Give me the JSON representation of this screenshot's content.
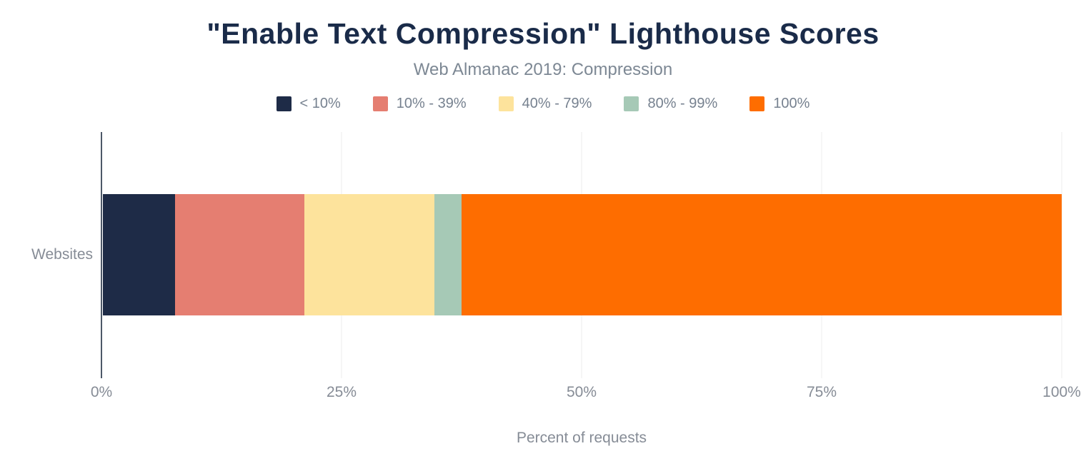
{
  "chart": {
    "title": "\"Enable Text Compression\" Lighthouse Scores",
    "subtitle": "Web Almanac 2019: Compression",
    "y_category": "Websites",
    "x_axis_title": "Percent of requests"
  },
  "chart_data": {
    "type": "bar",
    "orientation": "horizontal",
    "stacked": true,
    "title": "\"Enable Text Compression\" Lighthouse Scores",
    "subtitle": "Web Almanac 2019: Compression",
    "categories": [
      "Websites"
    ],
    "series": [
      {
        "name": "< 10%",
        "values": [
          7.5
        ],
        "color": "#1e2b47"
      },
      {
        "name": "10% - 39%",
        "values": [
          13.5
        ],
        "color": "#e57e71"
      },
      {
        "name": "40% - 79%",
        "values": [
          13.6
        ],
        "color": "#fde39c"
      },
      {
        "name": "80% - 99%",
        "values": [
          2.8
        ],
        "color": "#a6c9b6"
      },
      {
        "name": "100%",
        "values": [
          62.6
        ],
        "color": "#fe6d00"
      }
    ],
    "xlabel": "Percent of requests",
    "ylabel": "",
    "xlim": [
      0,
      100
    ],
    "x_ticks": [
      "0%",
      "25%",
      "50%",
      "75%",
      "100%"
    ],
    "legend_position": "top",
    "grid": true,
    "text_colors": {
      "title": "#1a2b49",
      "labels": "#868c96",
      "axis_line": "#4d5868",
      "gridline": "#ededed"
    }
  }
}
